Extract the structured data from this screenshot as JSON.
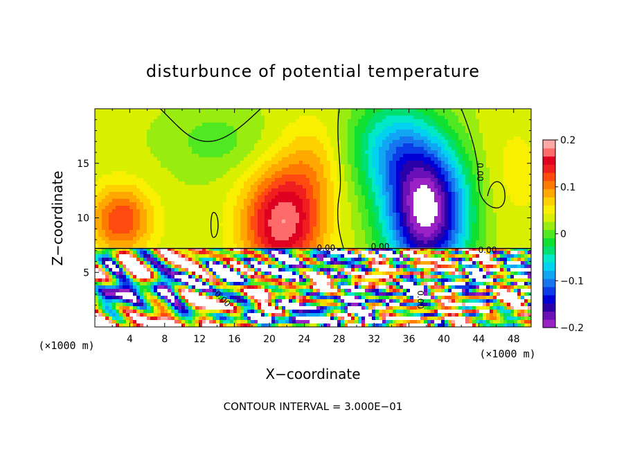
{
  "chart_data": {
    "type": "heatmap",
    "title": "disturbunce of potential temperature",
    "xlabel": "X−coordinate",
    "ylabel": "Z−coordinate",
    "x_unit_left": "(×1000 m)",
    "x_unit_right": "(×1000 m)",
    "footer": "CONTOUR INTERVAL = 3.000E−01",
    "xlim": [
      0,
      50
    ],
    "ylim": [
      0,
      20
    ],
    "x_ticks": [
      {
        "value": 4,
        "label": "4"
      },
      {
        "value": 8,
        "label": "8"
      },
      {
        "value": 12,
        "label": "12"
      },
      {
        "value": 16,
        "label": "16"
      },
      {
        "value": 20,
        "label": "20"
      },
      {
        "value": 24,
        "label": "24"
      },
      {
        "value": 28,
        "label": "28"
      },
      {
        "value": 32,
        "label": "32"
      },
      {
        "value": 36,
        "label": "36"
      },
      {
        "value": 40,
        "label": "40"
      },
      {
        "value": 44,
        "label": "44"
      },
      {
        "value": 48,
        "label": "48"
      }
    ],
    "y_ticks": [
      {
        "value": 5,
        "label": "5"
      },
      {
        "value": 10,
        "label": "10"
      },
      {
        "value": 15,
        "label": "15"
      }
    ],
    "colorbar": {
      "vmin": -0.2,
      "vmax": 0.2,
      "labels": [
        {
          "value": 0.2,
          "label": "0.2"
        },
        {
          "value": 0.1,
          "label": "0.1"
        },
        {
          "value": 0,
          "label": "0"
        },
        {
          "value": -0.1,
          "label": "−0.1"
        },
        {
          "value": -0.2,
          "label": "−0.2"
        }
      ],
      "colors": [
        "#9a22c4",
        "#6a10b8",
        "#2a00a8",
        "#0000d6",
        "#0a3ce8",
        "#1676f0",
        "#10a6f4",
        "#00d2f0",
        "#00e8c8",
        "#00e070",
        "#10e030",
        "#50e820",
        "#98ec10",
        "#d8f000",
        "#f8f000",
        "#ffd000",
        "#ffa800",
        "#ff7a00",
        "#ff4a10",
        "#f01e1e",
        "#e00020",
        "#ff6a6a",
        "#ffa8a8"
      ]
    },
    "contour_labels": [
      {
        "text": "0.00",
        "x": 43.8,
        "y": 14.2,
        "rotate": 90
      },
      {
        "text": "0.00",
        "x": 14.4,
        "y": 2.4,
        "rotate": 45
      },
      {
        "text": "0.00",
        "x": 26.5,
        "y": 7.0,
        "rotate": 0
      },
      {
        "text": "0.00",
        "x": 32.7,
        "y": 7.1,
        "rotate": 0
      },
      {
        "text": "0.00",
        "x": 45.0,
        "y": 6.8,
        "rotate": 0
      },
      {
        "text": "0.00",
        "x": 37.0,
        "y": 2.5,
        "rotate": 90
      }
    ]
  }
}
